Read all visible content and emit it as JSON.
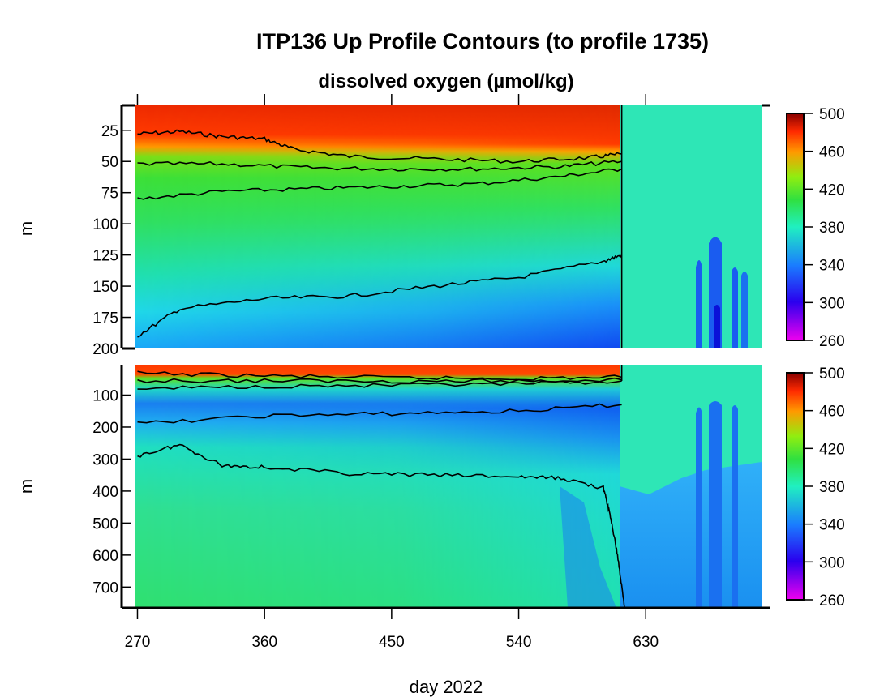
{
  "chart_data": [
    {
      "type": "heatmap",
      "title": "ITP136 Up Profile Contours (to profile 1735)",
      "subtitle": "dissolved oxygen (µmol/kg)",
      "xlabel": "day 2022",
      "ylabel": "m",
      "x_ticks": [
        270,
        360,
        450,
        540,
        630
      ],
      "xlim": [
        268,
        712
      ],
      "ylim": [
        200,
        5
      ],
      "y_ticks": [
        25,
        50,
        75,
        100,
        125,
        150,
        175,
        200
      ],
      "colorbar": {
        "ticks": [
          500,
          460,
          420,
          380,
          340,
          300,
          260
        ],
        "range": [
          260,
          500
        ]
      },
      "data_end_day": 613,
      "contours": [
        {
          "level": 440,
          "depth_m": [
            [
              270,
              28
            ],
            [
              300,
              26
            ],
            [
              330,
              30
            ],
            [
              360,
              32
            ],
            [
              380,
              40
            ],
            [
              420,
              46
            ],
            [
              480,
              48
            ],
            [
              540,
              50
            ],
            [
              590,
              47
            ],
            [
              613,
              44
            ]
          ]
        },
        {
          "level": 400,
          "depth_m": [
            [
              270,
              52
            ],
            [
              330,
              52
            ],
            [
              390,
              55
            ],
            [
              450,
              56
            ],
            [
              510,
              56
            ],
            [
              570,
              54
            ],
            [
              613,
              50
            ]
          ]
        },
        {
          "level": 380,
          "depth_m": [
            [
              270,
              80
            ],
            [
              330,
              74
            ],
            [
              390,
              72
            ],
            [
              450,
              70
            ],
            [
              510,
              68
            ],
            [
              570,
              62
            ],
            [
              613,
              56
            ]
          ]
        },
        {
          "level": 340,
          "depth_m": [
            [
              270,
              190
            ],
            [
              300,
              168
            ],
            [
              360,
              160
            ],
            [
              420,
              158
            ],
            [
              480,
              150
            ],
            [
              540,
              143
            ],
            [
              600,
              130
            ],
            [
              613,
              125
            ]
          ]
        }
      ]
    },
    {
      "type": "heatmap",
      "xlabel": "day 2022",
      "ylabel": "m",
      "x_ticks": [
        270,
        360,
        450,
        540,
        630
      ],
      "xlim": [
        268,
        712
      ],
      "ylim": [
        765,
        5
      ],
      "y_ticks": [
        100,
        200,
        300,
        400,
        500,
        600,
        700
      ],
      "colorbar": {
        "ticks": [
          500,
          460,
          420,
          380,
          340,
          300,
          260
        ],
        "range": [
          260,
          500
        ]
      },
      "data_end_day": 613,
      "contours": [
        {
          "level": 440,
          "depth_m": [
            [
              270,
              32
            ],
            [
              360,
              40
            ],
            [
              450,
              46
            ],
            [
              540,
              48
            ],
            [
              613,
              44
            ]
          ]
        },
        {
          "level": 400,
          "depth_m": [
            [
              270,
              55
            ],
            [
              360,
              55
            ],
            [
              450,
              56
            ],
            [
              540,
              56
            ],
            [
              613,
              52
            ]
          ]
        },
        {
          "level": 380,
          "depth_m": [
            [
              270,
              80
            ],
            [
              360,
              72
            ],
            [
              450,
              70
            ],
            [
              540,
              66
            ],
            [
              613,
              56
            ]
          ]
        },
        {
          "level": 340,
          "depth_m": [
            [
              270,
              190
            ],
            [
              360,
              165
            ],
            [
              450,
              158
            ],
            [
              540,
              150
            ],
            [
              613,
              130
            ]
          ]
        },
        {
          "level": 320,
          "depth_m": [
            [
              270,
              290
            ],
            [
              300,
              255
            ],
            [
              330,
              320
            ],
            [
              360,
              325
            ],
            [
              420,
              345
            ],
            [
              480,
              350
            ],
            [
              540,
              355
            ],
            [
              570,
              360
            ],
            [
              600,
              390
            ],
            [
              605,
              480
            ],
            [
              610,
              600
            ],
            [
              615,
              765
            ]
          ]
        }
      ]
    }
  ]
}
